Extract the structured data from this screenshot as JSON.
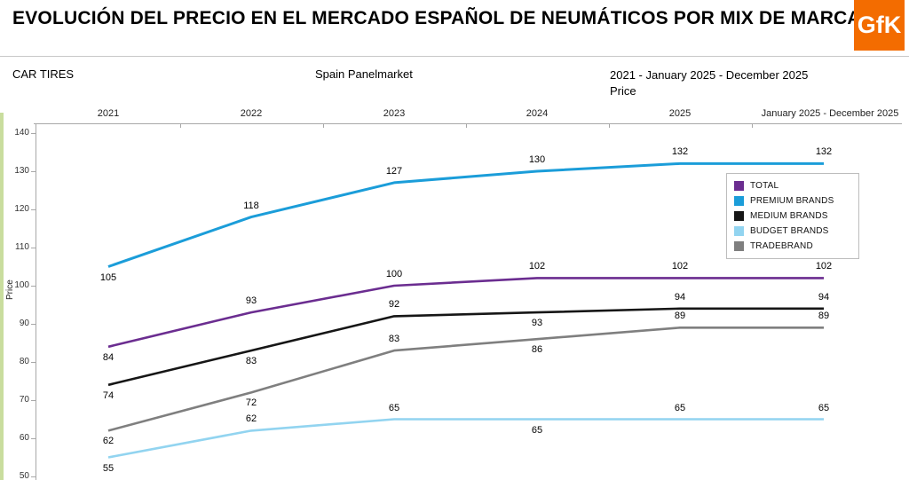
{
  "header": {
    "title": "EVOLUCIÓN DEL PRECIO EN EL MERCADO ESPAÑOL DE NEUMÁTICOS POR MIX DE MARCA",
    "logo": "GfK",
    "logo_bg": "#F36C00"
  },
  "subheader": {
    "left": "CAR TIRES",
    "center": "Spain Panelmarket",
    "right_line1": "2021 - January 2025 - December 2025",
    "right_line2": "Price"
  },
  "chart_data": {
    "type": "line",
    "title": "EVOLUCIÓN DEL PRECIO EN EL MERCADO ESPAÑOL DE NEUMÁTICOS POR MIX DE MARCA",
    "categories": [
      "2021",
      "2022",
      "2023",
      "2024",
      "2025",
      "January 2025 - December 2025"
    ],
    "xlabel": "",
    "ylabel": "Price",
    "ylim": [
      50,
      140
    ],
    "yticks": [
      50,
      60,
      70,
      80,
      90,
      100,
      110,
      120,
      130,
      140
    ],
    "grid": false,
    "legend_position": "inside-right",
    "series": [
      {
        "name": "TOTAL",
        "color": "#6B2D90",
        "line_width": 2.6,
        "values": [
          84,
          93,
          100,
          102,
          102,
          102
        ],
        "label_side": [
          "below",
          "above",
          "above",
          "above",
          "above",
          "above"
        ]
      },
      {
        "name": "PREMIUM BRANDS",
        "color": "#1B9DD9",
        "line_width": 3,
        "values": [
          105,
          118,
          127,
          130,
          132,
          132
        ],
        "label_side": [
          "below",
          "above",
          "above",
          "above",
          "above",
          "above"
        ]
      },
      {
        "name": "MEDIUM BRANDS",
        "color": "#161616",
        "line_width": 2.6,
        "values": [
          74,
          83,
          92,
          93,
          94,
          94
        ],
        "label_side": [
          "below",
          "below",
          "above",
          "below",
          "above",
          "above"
        ]
      },
      {
        "name": "BUDGET BRANDS",
        "color": "#92D4F0",
        "line_width": 2.6,
        "values": [
          55,
          62,
          65,
          65,
          65,
          65
        ],
        "label_side": [
          "below",
          "above",
          "above",
          "below",
          "above",
          "above"
        ]
      },
      {
        "name": "TRADEBRAND",
        "color": "#7F7F7F",
        "line_width": 2.6,
        "values": [
          62,
          72,
          83,
          86,
          89,
          89
        ],
        "label_side": [
          "below",
          "below",
          "above",
          "below",
          "above",
          "above"
        ]
      }
    ]
  }
}
